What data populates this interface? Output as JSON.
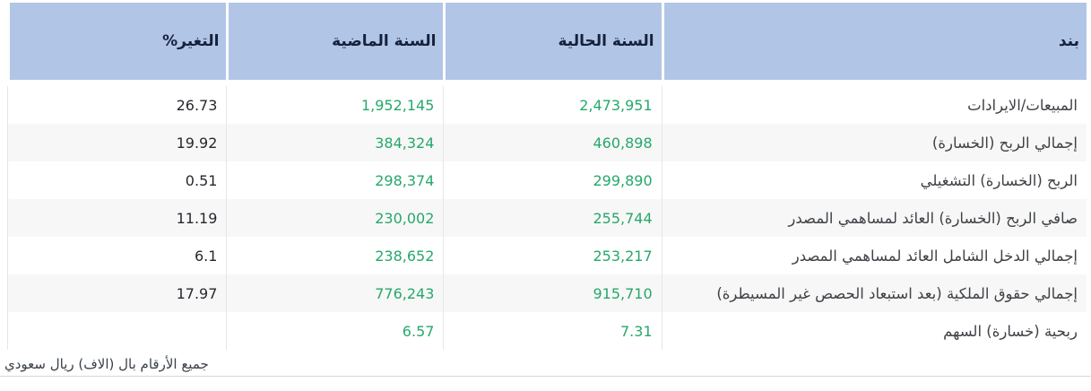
{
  "table": {
    "columns": [
      {
        "key": "item",
        "label": "بند"
      },
      {
        "key": "current_year",
        "label": "السنة الحالية"
      },
      {
        "key": "previous_year",
        "label": "السنة الماضية"
      },
      {
        "key": "change_pct",
        "label": "التغير%"
      }
    ],
    "rows": [
      {
        "item": "المبيعات/الايرادات",
        "current_year": "2,473,951",
        "previous_year": "1,952,145",
        "change_pct": "26.73"
      },
      {
        "item": "إجمالي الربح (الخسارة)",
        "current_year": "460,898",
        "previous_year": "384,324",
        "change_pct": "19.92"
      },
      {
        "item": "الربح (الخسارة) التشغيلي",
        "current_year": "299,890",
        "previous_year": "298,374",
        "change_pct": "0.51"
      },
      {
        "item": "صافي الربح (الخسارة) العائد لمساهمي المصدر",
        "current_year": "255,744",
        "previous_year": "230,002",
        "change_pct": "11.19"
      },
      {
        "item": "إجمالي الدخل الشامل العائد لمساهمي المصدر",
        "current_year": "253,217",
        "previous_year": "238,652",
        "change_pct": "6.1"
      },
      {
        "item": "إجمالي حقوق الملكية (بعد استبعاد الحصص غير المسيطرة)",
        "current_year": "915,710",
        "previous_year": "776,243",
        "change_pct": "17.97"
      },
      {
        "item": "ربحية (خسارة) السهم",
        "current_year": "7.31",
        "previous_year": "6.57",
        "change_pct": ""
      }
    ]
  },
  "footer": {
    "note": "جميع الأرقام بال (الاف) ريال سعودي"
  },
  "colors": {
    "header_background": "#b1c5e7",
    "header_text": "#16213a",
    "positive_value_green": "#26a86a",
    "change_text": "#26282e",
    "row_stripe": "#f7f7f7",
    "cell_border": "#e7e7e7",
    "bottom_rule": "#d6d6d6"
  }
}
